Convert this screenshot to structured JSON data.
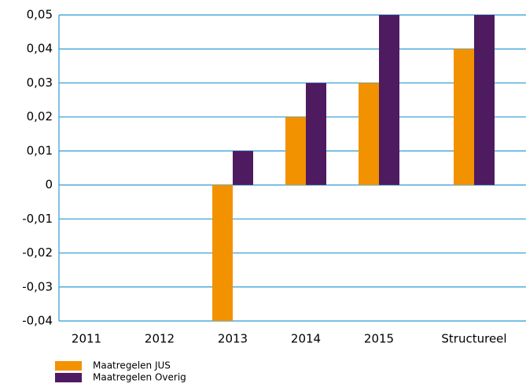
{
  "chart_data": {
    "type": "bar",
    "categories": [
      "2011",
      "2012",
      "2013",
      "2014",
      "2015",
      "Structureel"
    ],
    "series": [
      {
        "name": "Maatregelen JUS",
        "color": "#f39200",
        "values": [
          0,
          0,
          -0.04,
          0.02,
          0.03,
          0.04
        ]
      },
      {
        "name": "Maatregelen Overig",
        "color": "#4e1a60",
        "values": [
          0,
          0,
          0.01,
          0.03,
          0.05,
          0.05
        ]
      }
    ],
    "ylim": [
      -0.04,
      0.05
    ],
    "yticks": [
      {
        "value": -0.04,
        "label": "-0,04"
      },
      {
        "value": -0.03,
        "label": "-0,03"
      },
      {
        "value": -0.02,
        "label": "-0,02"
      },
      {
        "value": -0.01,
        "label": "-0,01"
      },
      0,
      {
        "value": 0.01,
        "label": "0,01"
      },
      {
        "value": 0.02,
        "label": "0,02"
      },
      {
        "value": 0.03,
        "label": "0,03"
      },
      {
        "value": 0.04,
        "label": "0,04"
      },
      {
        "value": 0.05,
        "label": "0,05"
      }
    ],
    "grid": true,
    "legend": "bottom-left"
  }
}
